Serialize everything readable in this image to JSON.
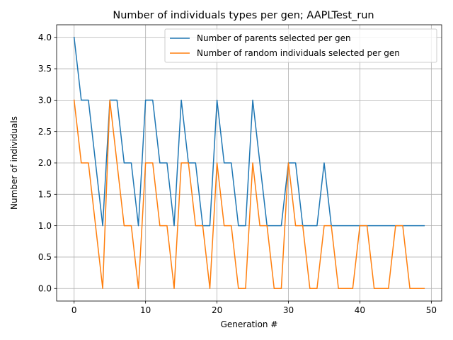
{
  "chart_data": {
    "type": "line",
    "title": "Number of individuals types per gen; AAPLTest_run",
    "xlabel": "Generation #",
    "ylabel": "Number of individuals",
    "xlim": [
      -2.45,
      51.45
    ],
    "ylim": [
      -0.2,
      4.2
    ],
    "xticks": [
      0,
      10,
      20,
      30,
      40,
      50
    ],
    "yticks": [
      0.0,
      0.5,
      1.0,
      1.5,
      2.0,
      2.5,
      3.0,
      3.5,
      4.0
    ],
    "ytick_labels": [
      "0.0",
      "0.5",
      "1.0",
      "1.5",
      "2.0",
      "2.5",
      "3.0",
      "3.5",
      "4.0"
    ],
    "xtick_labels": [
      "0",
      "10",
      "20",
      "30",
      "40",
      "50"
    ],
    "grid": true,
    "legend_position": "top-right",
    "x": [
      0,
      1,
      2,
      3,
      4,
      5,
      6,
      7,
      8,
      9,
      10,
      11,
      12,
      13,
      14,
      15,
      16,
      17,
      18,
      19,
      20,
      21,
      22,
      23,
      24,
      25,
      26,
      27,
      28,
      29,
      30,
      31,
      32,
      33,
      34,
      35,
      36,
      37,
      38,
      39,
      40,
      41,
      42,
      43,
      44,
      45,
      46,
      47,
      48,
      49
    ],
    "series": [
      {
        "name": "Number of parents selected per gen",
        "color": "#1f77b4",
        "values": [
          4,
          3,
          3,
          2,
          1,
          3,
          3,
          2,
          2,
          1,
          3,
          3,
          2,
          2,
          1,
          3,
          2,
          2,
          1,
          1,
          3,
          2,
          2,
          1,
          1,
          3,
          2,
          1,
          1,
          1,
          2,
          2,
          1,
          1,
          1,
          2,
          1,
          1,
          1,
          1,
          1,
          1,
          1,
          1,
          1,
          1,
          1,
          1,
          1,
          1
        ]
      },
      {
        "name": "Number of random individuals selected per gen",
        "color": "#ff7f0e",
        "values": [
          3,
          2,
          2,
          1,
          0,
          3,
          2,
          1,
          1,
          0,
          2,
          2,
          1,
          1,
          0,
          2,
          2,
          1,
          1,
          0,
          2,
          1,
          1,
          0,
          0,
          2,
          1,
          1,
          0,
          0,
          2,
          1,
          1,
          0,
          0,
          1,
          1,
          0,
          0,
          0,
          1,
          1,
          0,
          0,
          0,
          1,
          1,
          0,
          0,
          0
        ]
      }
    ]
  }
}
